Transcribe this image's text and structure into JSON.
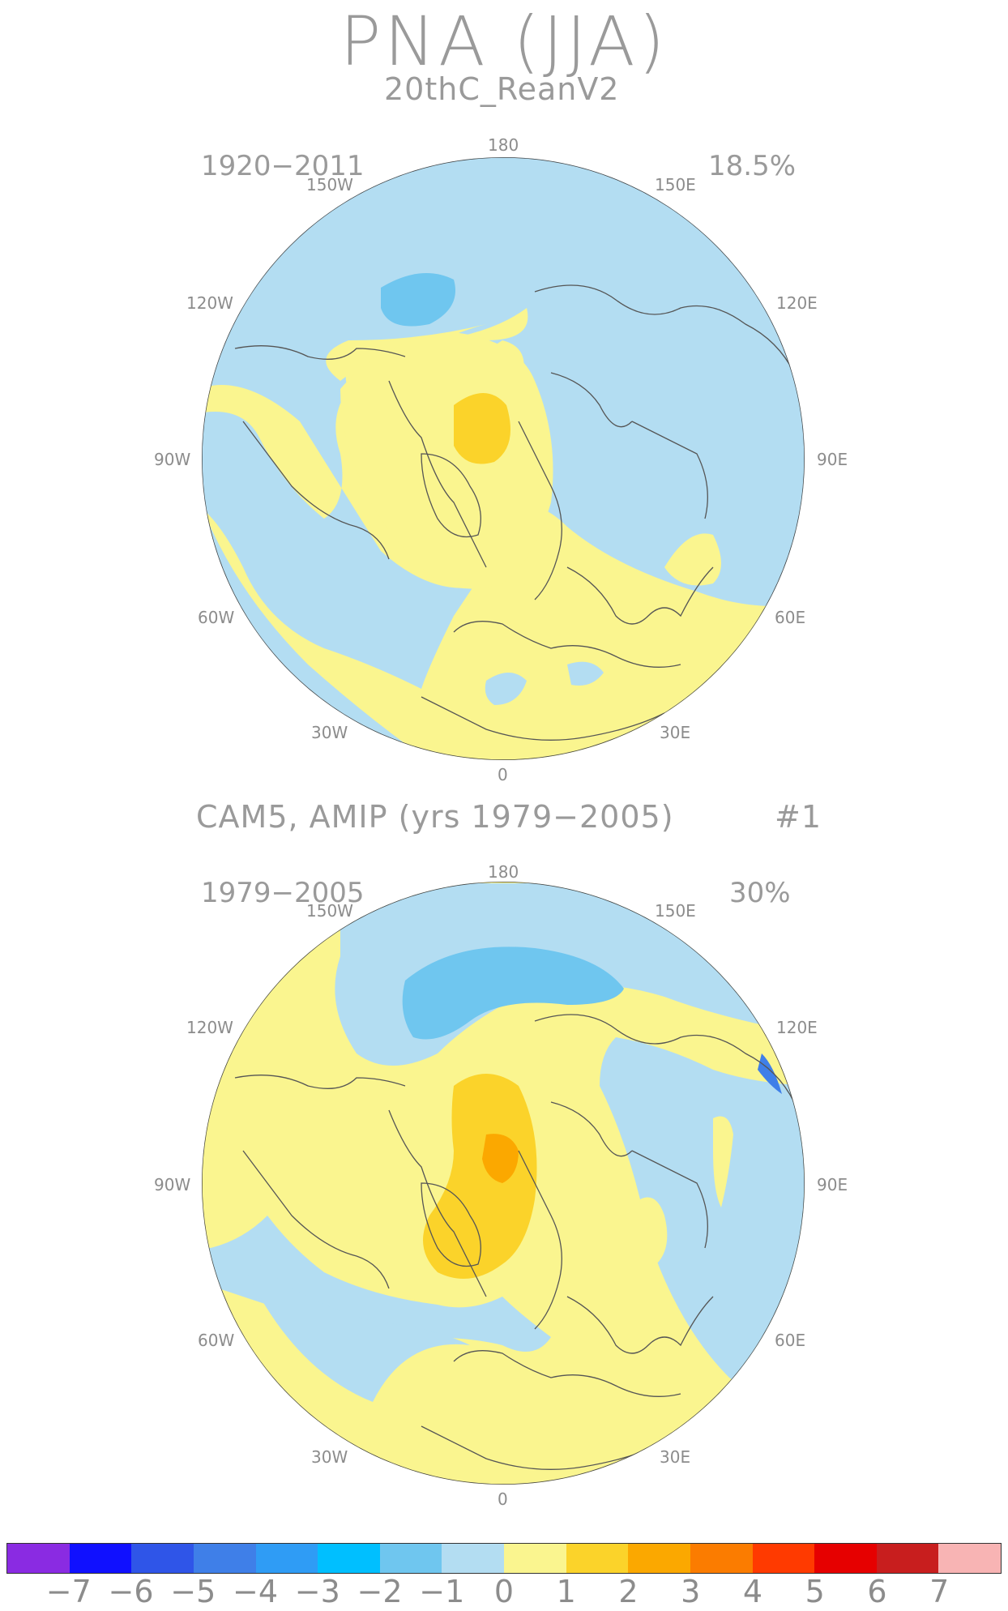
{
  "title": "PNA (JJA)",
  "panels": [
    {
      "title": "20thC_ReanV2",
      "period": "1920−2011",
      "variance": "18.5%",
      "lon_labels": {
        "top": "180",
        "upper_left": "150W",
        "upper_right": "150E",
        "mid_upper_left": "120W",
        "mid_upper_right": "120E",
        "left": "90W",
        "right": "90E",
        "mid_lower_left": "60W",
        "mid_lower_right": "60E",
        "lower_left": "30W",
        "lower_right": "30E",
        "bottom": "0"
      }
    },
    {
      "title": "CAM5, AMIP (yrs 1979−2005)",
      "run": "#1",
      "period": "1979−2005",
      "variance": "30%",
      "lon_labels": {
        "top": "180",
        "upper_left": "150W",
        "upper_right": "150E",
        "mid_upper_left": "120W",
        "mid_upper_right": "120E",
        "left": "90W",
        "right": "90E",
        "mid_lower_left": "60W",
        "mid_lower_right": "60E",
        "lower_left": "30W",
        "lower_right": "30E",
        "bottom": "0"
      }
    }
  ],
  "colorbar": {
    "colors": [
      "#8a2be2",
      "#1010ff",
      "#2f55e8",
      "#3f7fe8",
      "#2f9cf5",
      "#00bfff",
      "#6fc6ef",
      "#b3ddf2",
      "#faf58f",
      "#fbd32a",
      "#fba800",
      "#fb7c00",
      "#ff3a00",
      "#e60000",
      "#c81e1e",
      "#f8b4b4"
    ],
    "labels": [
      "−7",
      "−6",
      "−5",
      "−4",
      "−3",
      "−2",
      "−1",
      "0",
      "1",
      "2",
      "3",
      "4",
      "5",
      "6",
      "7"
    ]
  }
}
